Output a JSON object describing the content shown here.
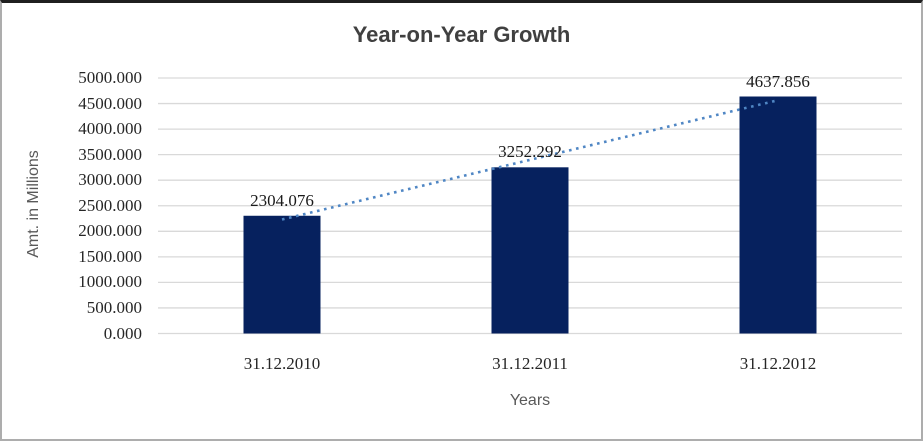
{
  "chart_data": {
    "type": "bar",
    "title": "Year-on-Year Growth",
    "xlabel": "Years",
    "ylabel": "Amt. in Millions",
    "categories": [
      "31.12.2010",
      "31.12.2011",
      "31.12.2012"
    ],
    "values": [
      2304.076,
      3252.292,
      4637.856
    ],
    "data_labels": [
      "2304.076",
      "3252.292",
      "4637.856"
    ],
    "ylim": [
      0,
      5000
    ],
    "y_tick_step": 500,
    "y_tick_labels": [
      "0.000",
      "500.000",
      "1000.000",
      "1500.000",
      "2000.000",
      "2500.000",
      "3000.000",
      "3500.000",
      "4000.000",
      "4500.000",
      "5000.000"
    ],
    "grid": true,
    "legend_position": "none",
    "trendline": {
      "type": "linear",
      "style": "dotted"
    },
    "colors": {
      "bar": "#06215e",
      "trendline": "#4f86c4",
      "gridline": "#d9d9d9",
      "title": "#404040",
      "tick_labels": "#262626",
      "axis_titles": "#595959",
      "frame_top_border": "#1f1f1f",
      "frame_side_border": "#adadad",
      "background": "#ffffff"
    }
  }
}
